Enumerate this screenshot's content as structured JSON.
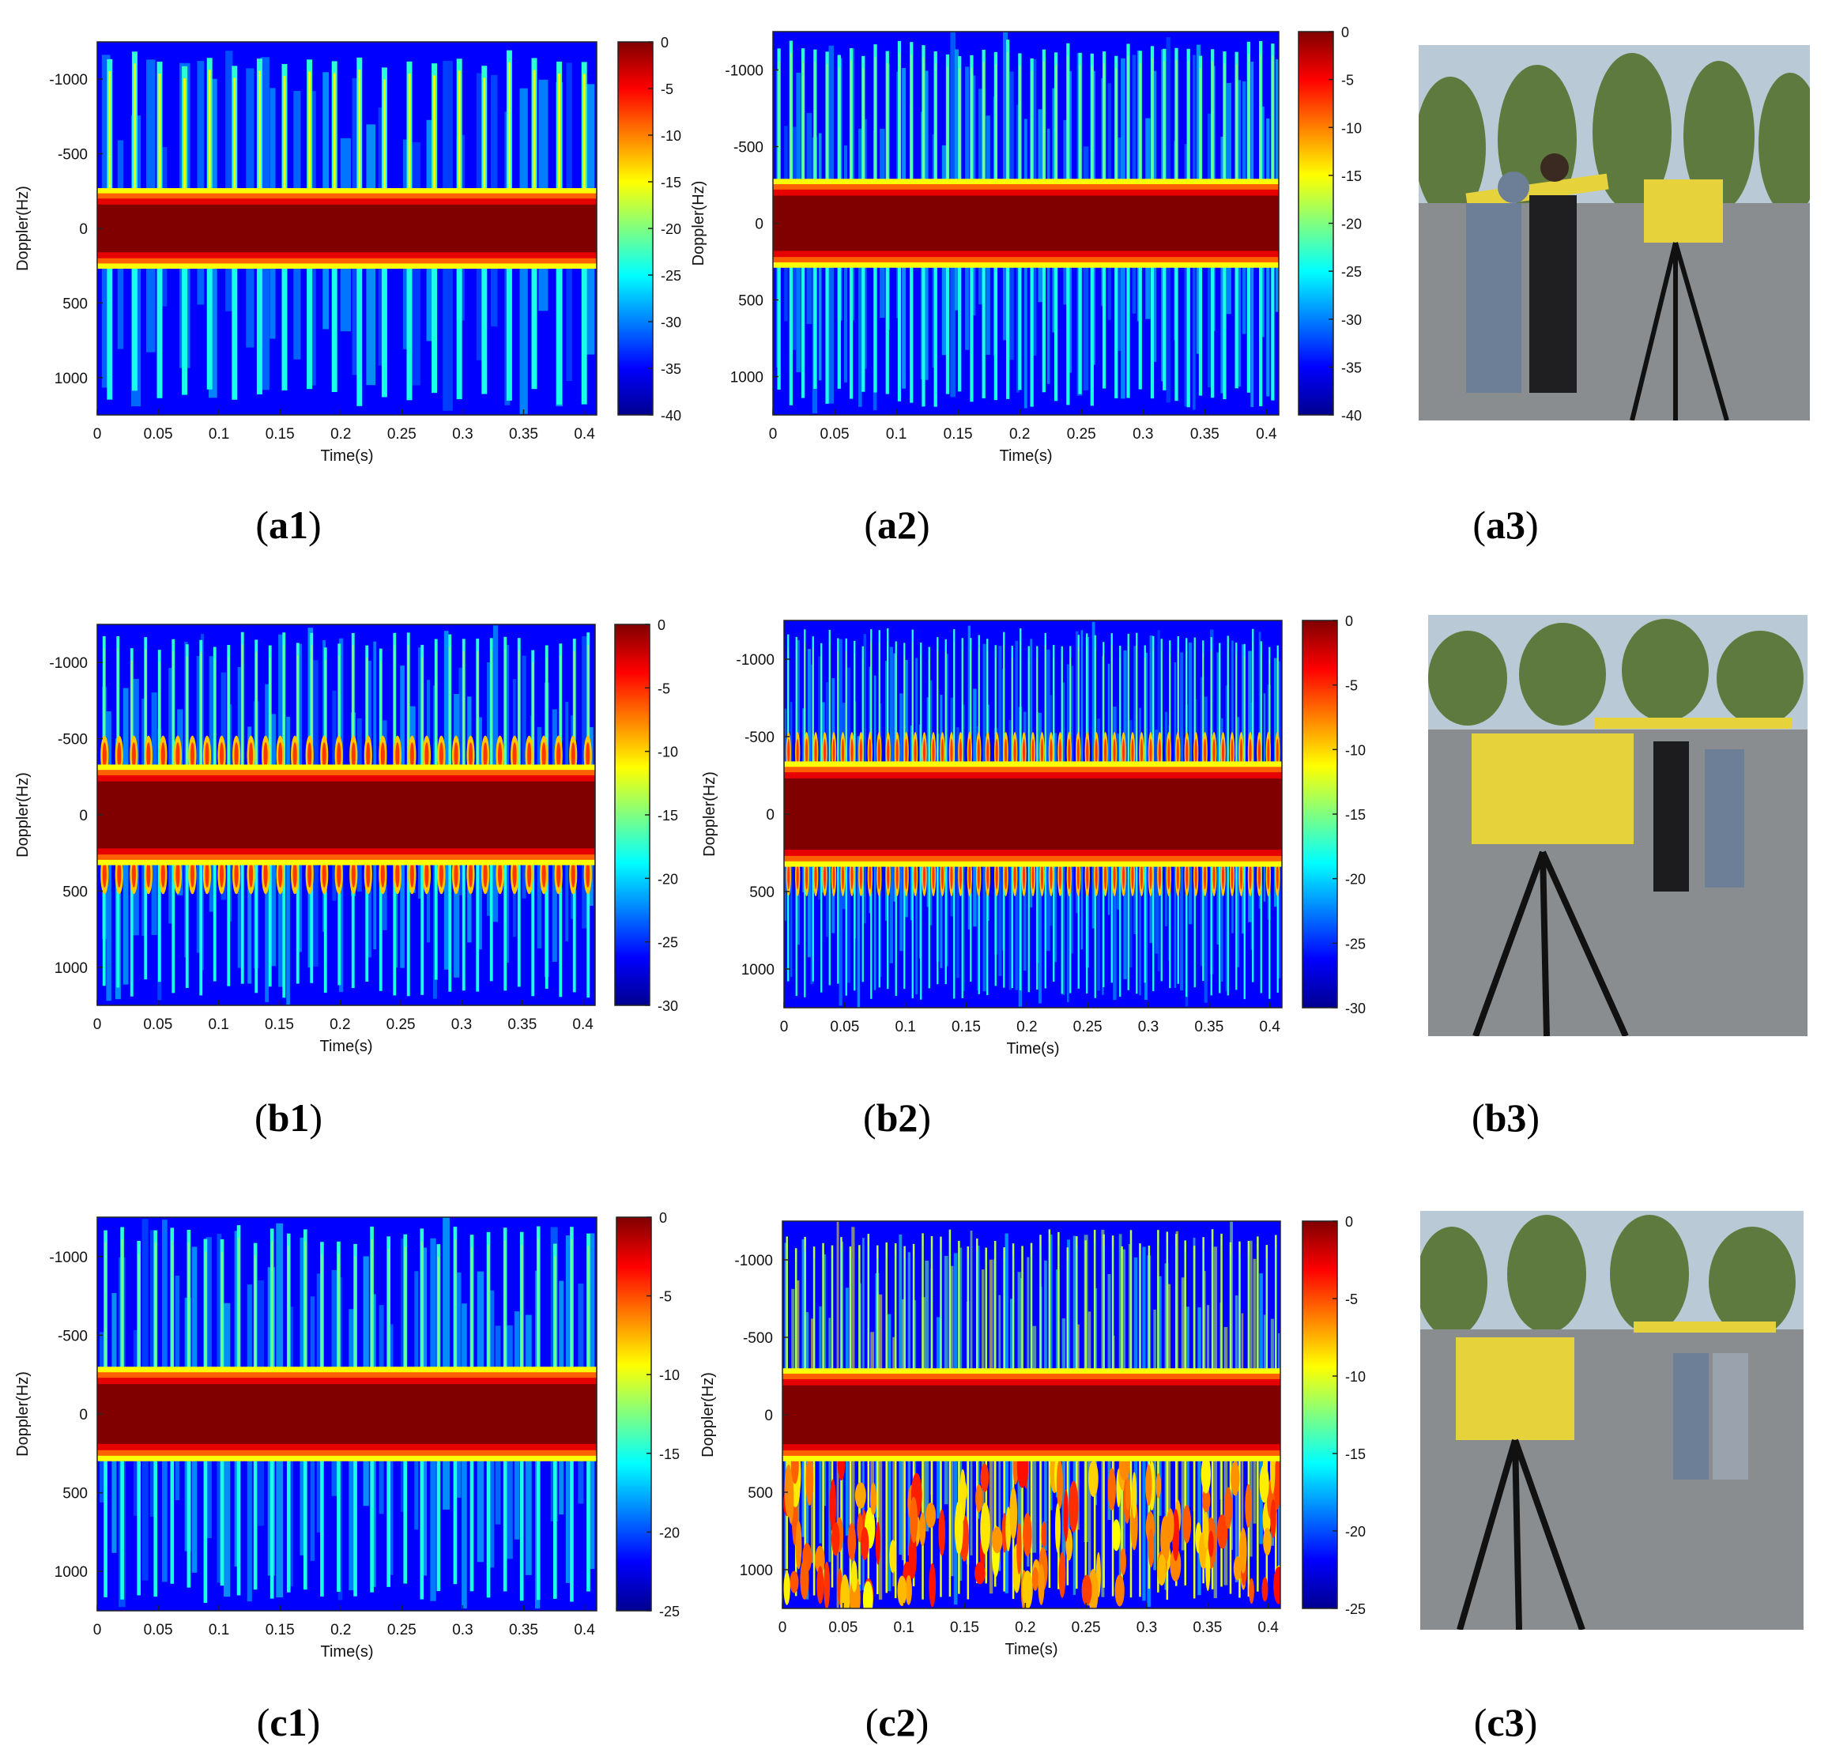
{
  "colors": {
    "jet": [
      "#00008f",
      "#0000ff",
      "#0080ff",
      "#00ffff",
      "#80ff80",
      "#ffff00",
      "#ff8000",
      "#ff0000",
      "#800000"
    ],
    "photo_sky": "#b9c9d6",
    "photo_ground": "#8a8d8f",
    "radar_yellow": "#e6d23a"
  },
  "captions": {
    "a1": "a1",
    "a2": "a2",
    "a3": "a3",
    "b1": "b1",
    "b2": "b2",
    "b3": "b3",
    "c1": "c1",
    "c2": "c2",
    "c3": "c3"
  },
  "chart_data": [
    {
      "id": "a1",
      "type": "heatmap",
      "pattern": "sparse_lines",
      "xlabel": "Time(s)",
      "ylabel": "Doppler(Hz)",
      "xlim": [
        0,
        0.41
      ],
      "ylim": [
        -1250,
        1250
      ],
      "xticks": [
        "0",
        "0.05",
        "0.1",
        "0.15",
        "0.2",
        "0.25",
        "0.3",
        "0.35",
        "0.4"
      ],
      "yticks": [
        "-1000",
        "-500",
        "0",
        "500",
        "1000"
      ],
      "colorbar": {
        "min": -40,
        "max": 0,
        "ticks": [
          "0",
          "-5",
          "-10",
          "-15",
          "-20",
          "-25",
          "-30",
          "-35",
          "-40"
        ]
      },
      "band_halfwidth_hz": 200,
      "stripe_count": 20
    },
    {
      "id": "a2",
      "type": "heatmap",
      "pattern": "dense_lines",
      "xlabel": "Time(s)",
      "ylabel": "Doppler(Hz)",
      "xlim": [
        0,
        0.41
      ],
      "ylim": [
        -1250,
        1250
      ],
      "xticks": [
        "0",
        "0.05",
        "0.1",
        "0.15",
        "0.2",
        "0.25",
        "0.3",
        "0.35",
        "0.4"
      ],
      "yticks": [
        "-1000",
        "-500",
        "0",
        "500",
        "1000"
      ],
      "colorbar": {
        "min": -40,
        "max": 0,
        "ticks": [
          "0",
          "-5",
          "-10",
          "-15",
          "-20",
          "-25",
          "-30",
          "-35",
          "-40"
        ]
      },
      "band_halfwidth_hz": 220,
      "stripe_count": 42
    },
    {
      "id": "b1",
      "type": "heatmap",
      "pattern": "waves",
      "xlabel": "Time(s)",
      "ylabel": "Doppler(Hz)",
      "xlim": [
        0,
        0.41
      ],
      "ylim": [
        -1250,
        1250
      ],
      "xticks": [
        "0",
        "0.05",
        "0.1",
        "0.15",
        "0.2",
        "0.25",
        "0.3",
        "0.35",
        "0.4"
      ],
      "yticks": [
        "-1000",
        "-500",
        "0",
        "500",
        "1000"
      ],
      "colorbar": {
        "min": -30,
        "max": 0,
        "ticks": [
          "0",
          "-5",
          "-10",
          "-15",
          "-20",
          "-25",
          "-30"
        ]
      },
      "band_halfwidth_hz": 260,
      "stripe_count": 36
    },
    {
      "id": "b2",
      "type": "heatmap",
      "pattern": "waves_dense",
      "xlabel": "Time(s)",
      "ylabel": "Doppler(Hz)",
      "xlim": [
        0,
        0.41
      ],
      "ylim": [
        -1250,
        1250
      ],
      "xticks": [
        "0",
        "0.05",
        "0.1",
        "0.15",
        "0.2",
        "0.25",
        "0.3",
        "0.35",
        "0.4"
      ],
      "yticks": [
        "-1000",
        "-500",
        "0",
        "500",
        "1000"
      ],
      "colorbar": {
        "min": -30,
        "max": 0,
        "ticks": [
          "0",
          "-5",
          "-10",
          "-15",
          "-20",
          "-25",
          "-30"
        ]
      },
      "band_halfwidth_hz": 270,
      "stripe_count": 60
    },
    {
      "id": "c1",
      "type": "heatmap",
      "pattern": "sparse_lines",
      "xlabel": "Time(s)",
      "ylabel": "Doppler(Hz)",
      "xlim": [
        0,
        0.41
      ],
      "ylim": [
        -1250,
        1250
      ],
      "xticks": [
        "0",
        "0.05",
        "0.1",
        "0.15",
        "0.2",
        "0.25",
        "0.3",
        "0.35",
        "0.4"
      ],
      "yticks": [
        "-1000",
        "-500",
        "0",
        "500",
        "1000"
      ],
      "colorbar": {
        "min": -25,
        "max": 0,
        "ticks": [
          "0",
          "-5",
          "-10",
          "-15",
          "-20",
          "-25"
        ]
      },
      "band_halfwidth_hz": 230,
      "stripe_count": 30
    },
    {
      "id": "c2",
      "type": "heatmap",
      "pattern": "noisy",
      "xlabel": "Time(s)",
      "ylabel": "Doppler(Hz)",
      "xlim": [
        0,
        0.41
      ],
      "ylim": [
        -1250,
        1250
      ],
      "xticks": [
        "0",
        "0.05",
        "0.1",
        "0.15",
        "0.2",
        "0.25",
        "0.3",
        "0.35",
        "0.4"
      ],
      "yticks": [
        "-1000",
        "-500",
        "0",
        "500",
        "1000"
      ],
      "colorbar": {
        "min": -25,
        "max": 0,
        "ticks": [
          "0",
          "-5",
          "-10",
          "-15",
          "-20",
          "-25"
        ]
      },
      "band_halfwidth_hz": 230,
      "stripe_count": 55
    }
  ]
}
